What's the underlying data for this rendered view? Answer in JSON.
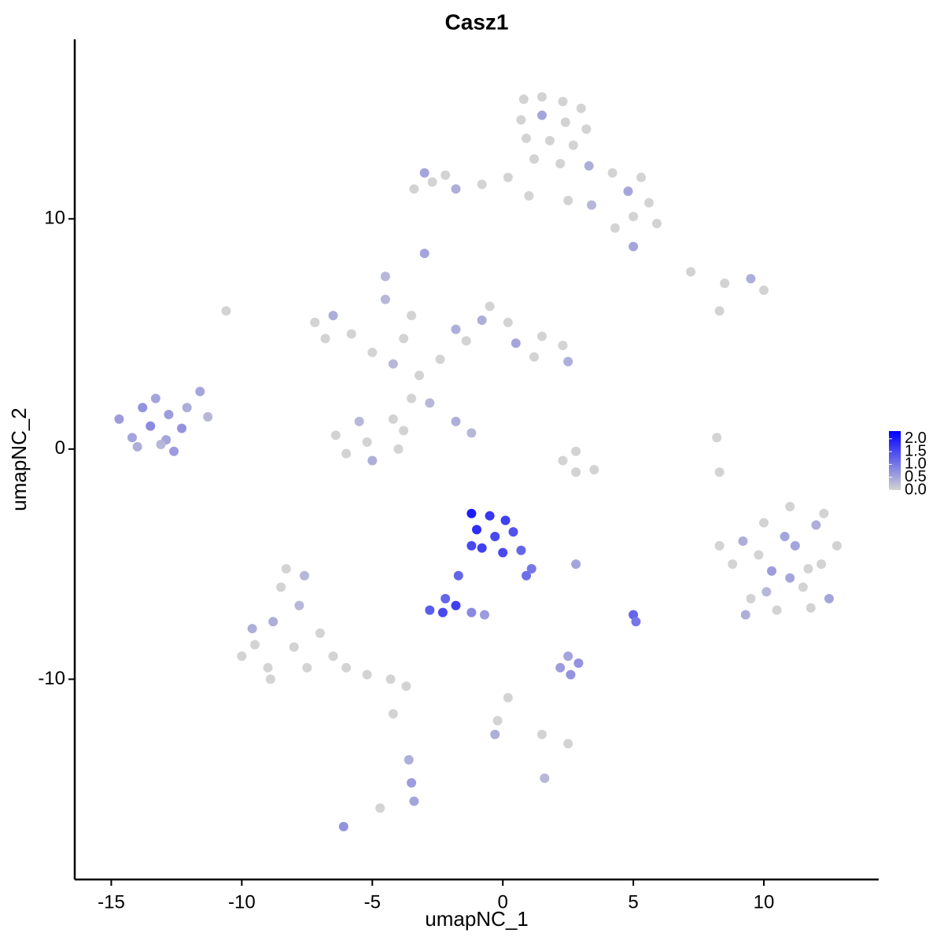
{
  "chart_data": {
    "type": "scatter",
    "title": "Casz1",
    "x_label": "umapNC_1",
    "y_label": "umapNC_2",
    "xlim": [
      -16.4,
      14.4
    ],
    "ylim": [
      -18.7,
      17.8
    ],
    "xticks": [
      -15,
      -10,
      -5,
      0,
      5,
      10
    ],
    "yticks": [
      -10,
      0,
      10
    ],
    "color_low": "#d3d3d3",
    "color_high": "#0000ff",
    "colorlim": [
      0,
      2.3
    ],
    "colorbar_ticks": [
      {
        "value": 0,
        "label": "0.0"
      },
      {
        "value": 0.5,
        "label": "0.5"
      },
      {
        "value": 1,
        "label": "1.0"
      },
      {
        "value": 1.5,
        "label": "1.5"
      },
      {
        "value": 2,
        "label": "2.0"
      }
    ],
    "x": [
      0.8,
      1.5,
      2.3,
      3,
      0.7,
      1.5,
      2.4,
      3.2,
      0.9,
      1.8,
      2.7,
      1.2,
      2.2,
      3.3,
      4.2,
      5.3,
      4.8,
      5.6,
      5.9,
      5,
      4.3,
      0.2,
      -0.8,
      -1.8,
      -2.7,
      -3,
      -2.2,
      1,
      2.5,
      3.4,
      -3.4,
      5,
      -7.2,
      -6.5,
      -6.8,
      -5.8,
      -5,
      -4.2,
      -3.2,
      -2.4,
      -1.4,
      -0.8,
      -0.5,
      0.2,
      0.5,
      1.5,
      2.3,
      2.5,
      1.2,
      -1.8,
      -3.5,
      -4.2,
      -5.5,
      -6.4,
      -6,
      -5,
      -4,
      -3.8,
      -5.2,
      -2.8,
      -1.8,
      -1.2,
      -4.5,
      -3.8,
      -3.5,
      -14.7,
      -14.2,
      -13.8,
      -13.3,
      -13.5,
      -12.8,
      -12.9,
      -12.3,
      -12.1,
      -11.6,
      -11.3,
      -12.6,
      -14,
      -13.1,
      8.8,
      9.2,
      9.5,
      10,
      10.3,
      10.5,
      11,
      11.2,
      11.5,
      12,
      12.2,
      12.5,
      12.8,
      9.8,
      10.8,
      11.7,
      9.3,
      10.1,
      11.8,
      12.3,
      8.3,
      11,
      -1.2,
      -0.5,
      0.1,
      -1,
      -0.3,
      0.4,
      -0.8,
      0,
      0.7,
      1.1,
      0.9,
      -1.2,
      -1.7,
      -2.2,
      -2.8,
      -2.3,
      -1.8,
      -1.2,
      -0.7,
      -9.5,
      -10,
      -9,
      -8.8,
      -8.5,
      -8.3,
      -7.8,
      -8,
      -7.5,
      -7,
      -6.5,
      -6,
      -5.2,
      -4.3,
      -3.7,
      -9.6,
      -7.6,
      -8.9,
      -4.2,
      -3.6,
      -3.5,
      -3.4,
      2.2,
      2.6,
      2.9,
      2.5,
      5,
      5.1,
      0.2,
      -0.2,
      -0.3,
      1.5,
      2.5,
      2.8,
      2.3,
      3.5,
      2.8,
      7.2,
      8.5,
      9.5,
      10,
      8.3,
      8.2,
      8.3,
      -3,
      -4.5,
      -6.1,
      -10.6,
      1.6,
      -4.7,
      2.8
    ],
    "y": [
      15.2,
      15.3,
      15.1,
      14.8,
      14.3,
      14.5,
      14.2,
      13.9,
      13.5,
      13.4,
      13.2,
      12.6,
      12.4,
      12.3,
      12,
      11.8,
      11.2,
      10.7,
      9.8,
      10.1,
      9.6,
      11.8,
      11.5,
      11.3,
      11.6,
      12,
      11.9,
      11,
      10.8,
      10.6,
      11.3,
      8.8,
      5.5,
      5.8,
      4.8,
      5,
      4.2,
      3.7,
      3.2,
      3.9,
      4.7,
      5.6,
      6.2,
      5.5,
      4.6,
      4.9,
      4.5,
      3.8,
      4,
      5.2,
      2.2,
      1.3,
      1.2,
      0.6,
      -0.2,
      -0.5,
      0,
      0.8,
      0.3,
      2,
      1.2,
      0.7,
      6.5,
      4.8,
      5.8,
      1.3,
      0.5,
      1.8,
      2.2,
      1,
      1.5,
      0.4,
      0.9,
      1.8,
      2.5,
      1.4,
      -0.1,
      0.1,
      0.2,
      -5,
      -4,
      -6.5,
      -3.2,
      -5.3,
      -7,
      -2.5,
      -4.2,
      -6,
      -3.3,
      -5,
      -6.5,
      -4.2,
      -4.6,
      -3.8,
      -5.2,
      -7.2,
      -6.2,
      -6.9,
      -2.8,
      -4.2,
      -5.6,
      -2.8,
      -2.9,
      -3.1,
      -3.5,
      -3.8,
      -3.6,
      -4.3,
      -4.5,
      -4.4,
      -5.2,
      -5.5,
      -4.2,
      -5.5,
      -6.5,
      -7,
      -7.1,
      -6.8,
      -7.1,
      -7.2,
      -8.5,
      -9,
      -9.5,
      -7.5,
      -6,
      -5.2,
      -6.8,
      -8.6,
      -9.5,
      -8,
      -9,
      -9.5,
      -9.8,
      -10,
      -10.3,
      -7.8,
      -5.5,
      -10,
      -11.5,
      -13.5,
      -14.5,
      -15.3,
      -9.5,
      -9.8,
      -9.3,
      -9,
      -7.2,
      -7.5,
      -10.8,
      -11.8,
      -12.4,
      -12.4,
      -12.8,
      -0.1,
      -0.5,
      -0.9,
      -1,
      7.7,
      7.2,
      7.4,
      6.9,
      6,
      0.5,
      -1,
      8.5,
      7.5,
      -16.4,
      6,
      -14.3,
      -15.6,
      -5
    ],
    "values": [
      0,
      0,
      0,
      0,
      0,
      0.5,
      0,
      0,
      0,
      0,
      0,
      0,
      0,
      0.4,
      0,
      0,
      0.5,
      0,
      0,
      0,
      0,
      0,
      0,
      0.4,
      0,
      0.5,
      0,
      0,
      0,
      0.3,
      0,
      0.5,
      0,
      0.4,
      0,
      0,
      0,
      0.3,
      0,
      0,
      0,
      0.4,
      0,
      0,
      0.5,
      0,
      0,
      0.4,
      0,
      0.4,
      0,
      0,
      0.3,
      0,
      0,
      0.4,
      0,
      0,
      0,
      0.3,
      0.4,
      0.3,
      0.3,
      0,
      0,
      0.6,
      0.5,
      0.7,
      0.5,
      0.8,
      0.6,
      0.5,
      0.7,
      0.4,
      0.5,
      0.3,
      0.6,
      0.4,
      0.3,
      0,
      0.4,
      0,
      0,
      0.6,
      0,
      0,
      0.5,
      0,
      0.4,
      0,
      0.5,
      0,
      0,
      0.5,
      0,
      0.4,
      0.3,
      0,
      0,
      0,
      0.5,
      2,
      1.7,
      1.6,
      1.8,
      1.5,
      1.4,
      1.6,
      1.5,
      1.2,
      1,
      1.1,
      1.5,
      1.2,
      1.2,
      1.3,
      1.5,
      1.6,
      0.8,
      0.6,
      0,
      0,
      0,
      0.4,
      0,
      0,
      0.3,
      0,
      0,
      0,
      0,
      0,
      0,
      0,
      0,
      0.4,
      0.3,
      0,
      0,
      0.4,
      0.6,
      0.5,
      0.6,
      0.7,
      0.7,
      0.5,
      1.2,
      1,
      0,
      0,
      0.4,
      0,
      0,
      0,
      0,
      0,
      0,
      0,
      0,
      0.4,
      0,
      0,
      0,
      0,
      0.5,
      0.3,
      0.7,
      0,
      0.3,
      0,
      0.5
    ]
  }
}
